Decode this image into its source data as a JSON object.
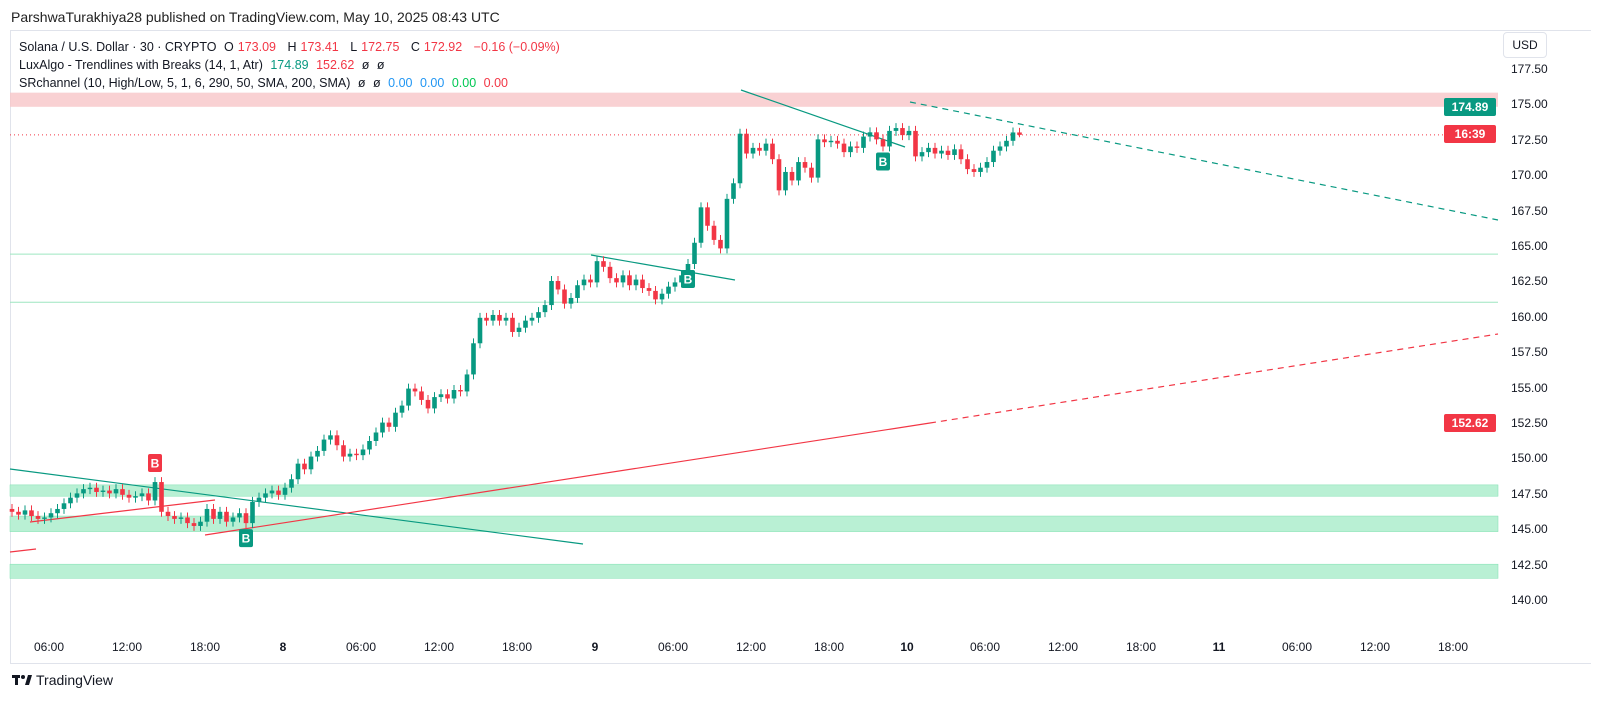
{
  "publisher_line": "ParshwaTurakhiya28 published on TradingView.com, May 10, 2025 08:43 UTC",
  "legend": {
    "symbol": "Solana / U.S. Dollar · 30 · CRYPTO",
    "o_label": "O",
    "o": "173.09",
    "h_label": "H",
    "h": "173.41",
    "l_label": "L",
    "l": "172.75",
    "c_label": "C",
    "c": "172.92",
    "change": "−0.16 (−0.09%)",
    "ind1_name": "LuxAlgo - Trendlines with Breaks (14, 1, Atr)",
    "ind1_v1": "174.89",
    "ind1_v2": "152.62",
    "ind1_v3": "ø",
    "ind1_v4": "ø",
    "ind2_name": "SRchannel (10, High/Low, 5, 1, 6, 290, 50, SMA, 200, SMA)",
    "ind2_v1": "ø",
    "ind2_v2": "ø",
    "ind2_v3": "0.00",
    "ind2_v4": "0.00",
    "ind2_v5": "0.00",
    "ind2_v6": "0.00"
  },
  "currency": "USD",
  "price_labels": {
    "upper_trend": "174.89",
    "countdown": "16:39",
    "lower_trend": "152.62"
  },
  "colors": {
    "up": "#089981",
    "down": "#f23645",
    "resistance_zone": "#f8c5c8",
    "support_zone": "#b9f0d4",
    "sr_line": "#9ee6c0"
  },
  "footer_brand": "TradingView",
  "break_markers": [
    {
      "label": "B",
      "type": "bearish",
      "bar": 22
    },
    {
      "label": "B",
      "type": "bullish",
      "bar": 36
    },
    {
      "label": "B",
      "type": "bullish",
      "bar": 104
    },
    {
      "label": "B",
      "type": "bullish",
      "bar": 134
    }
  ],
  "chart_data": {
    "type": "candlestick",
    "title": "Solana / U.S. Dollar · 30 · CRYPTO",
    "interval_minutes": 30,
    "ylim": [
      137.5,
      180
    ],
    "y_ticks": [
      "177.50",
      "175.00",
      "172.50",
      "170.00",
      "167.50",
      "165.00",
      "162.50",
      "160.00",
      "157.50",
      "155.00",
      "152.50",
      "150.00",
      "147.50",
      "145.00",
      "142.50",
      "140.00"
    ],
    "x_ticks": [
      {
        "label": "06:00",
        "day": false
      },
      {
        "label": "12:00",
        "day": false
      },
      {
        "label": "18:00",
        "day": false
      },
      {
        "label": "8",
        "day": true
      },
      {
        "label": "06:00",
        "day": false
      },
      {
        "label": "12:00",
        "day": false
      },
      {
        "label": "18:00",
        "day": false
      },
      {
        "label": "9",
        "day": true
      },
      {
        "label": "06:00",
        "day": false
      },
      {
        "label": "12:00",
        "day": false
      },
      {
        "label": "18:00",
        "day": false
      },
      {
        "label": "10",
        "day": true
      },
      {
        "label": "06:00",
        "day": false
      },
      {
        "label": "12:00",
        "day": false
      },
      {
        "label": "18:00",
        "day": false
      },
      {
        "label": "11",
        "day": true
      },
      {
        "label": "06:00",
        "day": false
      },
      {
        "label": "12:00",
        "day": false
      },
      {
        "label": "18:00",
        "day": false
      }
    ],
    "closes": [
      146.3,
      146.1,
      146.4,
      146.0,
      145.8,
      145.9,
      146.2,
      146.5,
      146.9,
      147.3,
      147.6,
      147.9,
      148.0,
      147.7,
      147.8,
      147.6,
      147.9,
      147.5,
      147.3,
      147.4,
      147.6,
      147.1,
      148.4,
      146.3,
      146.0,
      145.8,
      145.9,
      145.5,
      145.3,
      145.6,
      146.5,
      145.8,
      146.3,
      145.6,
      145.9,
      146.2,
      145.5,
      147.0,
      147.3,
      147.6,
      147.8,
      147.5,
      148.0,
      148.6,
      149.7,
      149.3,
      150.2,
      150.6,
      151.4,
      151.7,
      151.0,
      150.2,
      150.4,
      150.3,
      150.7,
      151.3,
      151.9,
      152.6,
      152.3,
      153.3,
      153.8,
      155.0,
      154.8,
      154.2,
      153.6,
      154.4,
      154.6,
      154.3,
      154.9,
      154.8,
      156.0,
      158.2,
      160.0,
      159.8,
      160.2,
      159.8,
      160.0,
      159.0,
      159.3,
      159.8,
      160.0,
      160.4,
      160.9,
      162.6,
      162.0,
      161.0,
      161.4,
      162.3,
      162.7,
      162.5,
      164.0,
      163.6,
      162.8,
      162.5,
      163.0,
      162.3,
      162.7,
      162.1,
      161.9,
      161.3,
      161.7,
      162.2,
      162.5,
      163.0,
      163.8,
      165.3,
      167.8,
      166.5,
      165.5,
      164.9,
      168.4,
      169.5,
      173.0,
      171.6,
      172.0,
      171.8,
      172.3,
      171.2,
      169.0,
      170.3,
      169.7,
      171.0,
      170.6,
      169.9,
      172.6,
      172.4,
      172.5,
      172.3,
      171.7,
      172.1,
      172.0,
      172.8,
      173.1,
      172.6,
      172.1,
      173.2,
      173.4,
      172.9,
      173.2,
      171.4,
      171.7,
      172.0,
      171.6,
      171.8,
      171.5,
      171.9,
      171.2,
      170.5,
      170.3,
      170.6,
      171.0,
      171.8,
      172.1,
      172.5,
      173.09,
      172.92
    ],
    "last_bar": {
      "open": 173.09,
      "high": 173.41,
      "low": 172.75,
      "close": 172.92
    },
    "resistance_zone": [
      174.9,
      175.9
    ],
    "support_zones": [
      [
        147.4,
        148.2
      ],
      [
        144.9,
        146.0
      ],
      [
        141.6,
        142.6
      ]
    ],
    "sr_lines": [
      164.5,
      161.1
    ],
    "trendline_upper_value": 174.89,
    "trendline_lower_value": 152.62
  }
}
